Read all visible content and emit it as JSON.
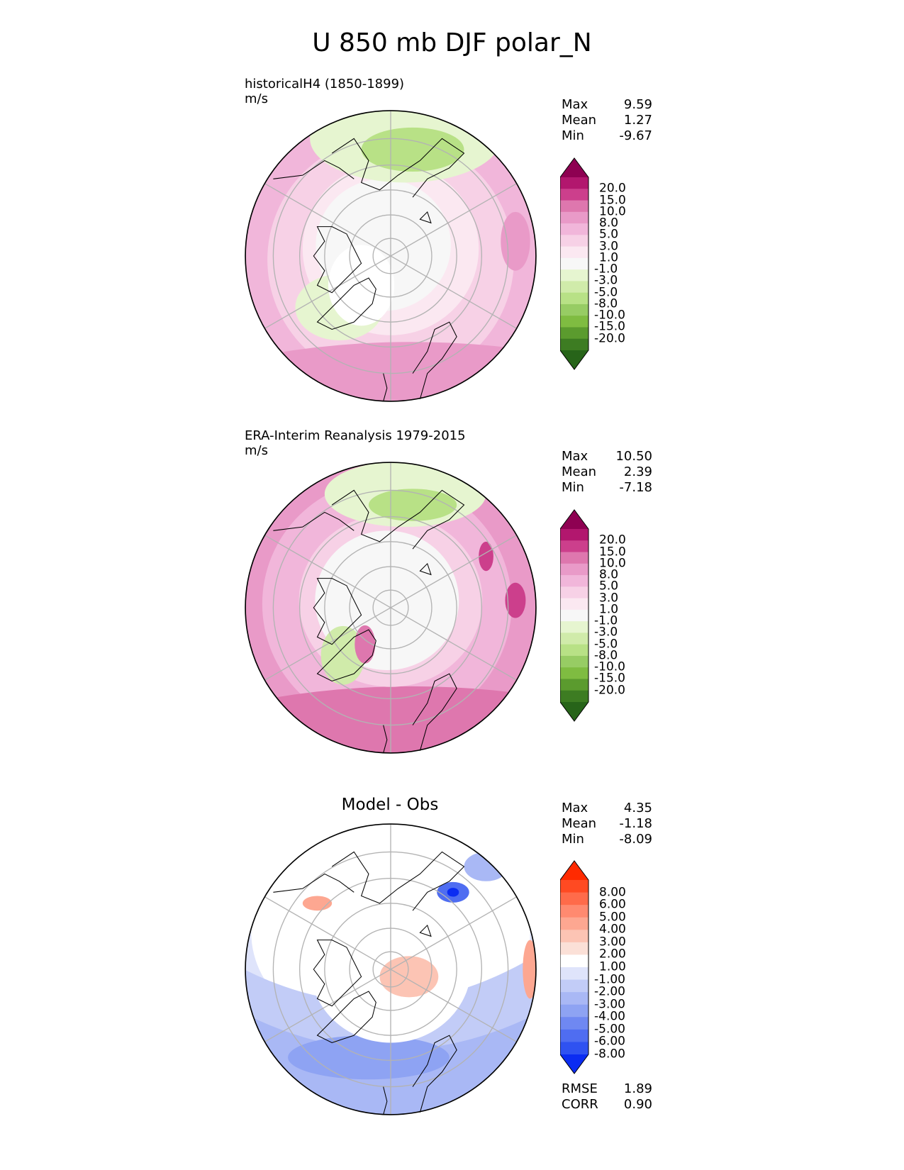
{
  "title": "U 850 mb DJF polar_N",
  "panels": [
    {
      "id": "model",
      "label": "historicalH4 (1850-1899)",
      "units": "m/s",
      "stats": [
        {
          "label": "Max",
          "value": "9.59"
        },
        {
          "label": "Mean",
          "value": "1.27"
        },
        {
          "label": "Min",
          "value": "-9.67"
        }
      ]
    },
    {
      "id": "obs",
      "label": "ERA-Interim Reanalysis 1979-2015",
      "units": "m/s",
      "stats": [
        {
          "label": "Max",
          "value": "10.50"
        },
        {
          "label": "Mean",
          "value": "2.39"
        },
        {
          "label": "Min",
          "value": "-7.18"
        }
      ]
    },
    {
      "id": "diff",
      "label": "Model - Obs",
      "stats": [
        {
          "label": "Max",
          "value": "4.35"
        },
        {
          "label": "Mean",
          "value": "-1.18"
        },
        {
          "label": "Min",
          "value": "-8.09"
        }
      ],
      "metrics": [
        {
          "label": "RMSE",
          "value": "1.89"
        },
        {
          "label": "CORR",
          "value": "0.90"
        }
      ]
    }
  ],
  "colorbars": {
    "field": {
      "ticks": [
        "20.0",
        "15.0",
        "10.0",
        "8.0",
        "5.0",
        "3.0",
        "1.0",
        "-1.0",
        "-3.0",
        "-5.0",
        "-8.0",
        "-10.0",
        "-15.0",
        "-20.0"
      ],
      "colors": [
        "#8e0152",
        "#b2176e",
        "#cc3f8c",
        "#de77ae",
        "#e99ac8",
        "#f1b6da",
        "#f7d1e6",
        "#fbe8f1",
        "#f7f7f7",
        "#e6f5d0",
        "#d0ebaa",
        "#b8e186",
        "#97cc64",
        "#7fbc41",
        "#5b9b2e",
        "#3d7c22",
        "#276419"
      ]
    },
    "diff": {
      "ticks": [
        "8.00",
        "6.00",
        "5.00",
        "4.00",
        "3.00",
        "2.00",
        "1.00",
        "-1.00",
        "-2.00",
        "-3.00",
        "-4.00",
        "-5.00",
        "-6.00",
        "-8.00"
      ],
      "colors": [
        "#ff2a00",
        "#ff4a22",
        "#ff6b4a",
        "#ff8a70",
        "#fda791",
        "#fcc4b4",
        "#fbe0d7",
        "#ffffff",
        "#dfe4fb",
        "#c2ccf7",
        "#a9b8f5",
        "#8ea3f3",
        "#6f88f2",
        "#4f6df1",
        "#2f52f1",
        "#0b2cf2"
      ]
    }
  },
  "map_colors": {
    "land_outline": "#000000",
    "gridline": "#b3b3b3",
    "rim": "#000000"
  }
}
